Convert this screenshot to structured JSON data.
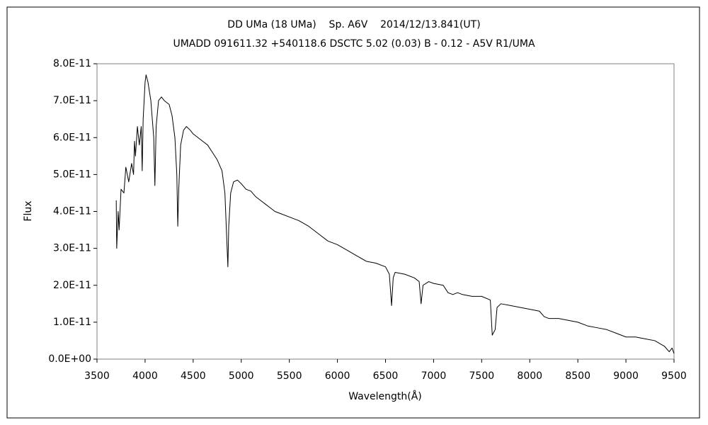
{
  "chart_data": {
    "type": "line",
    "title": "DD UMa (18 UMa)    Sp. A6V    2014/12/13.841(UT)",
    "subtitle": "UMADD 091611.32 +540118.6 DSCTC 5.02 (0.03) B - 0.12 - A5V R1/UMA",
    "x_label": "Wavelength(Å)",
    "y_label": "Flux",
    "xlim": [
      3500,
      9500
    ],
    "xticks": [
      3500,
      4000,
      4500,
      5000,
      5500,
      6000,
      6500,
      7000,
      7500,
      8000,
      8500,
      9000,
      9500
    ],
    "ylim": [
      0,
      8e-11
    ],
    "yticks": [
      {
        "value": 0,
        "label": "0.0E+00"
      },
      {
        "value": 1e-11,
        "label": "1.0E-11"
      },
      {
        "value": 2e-11,
        "label": "2.0E-11"
      },
      {
        "value": 3e-11,
        "label": "3.0E-11"
      },
      {
        "value": 4e-11,
        "label": "4.0E-11"
      },
      {
        "value": 5e-11,
        "label": "5.0E-11"
      },
      {
        "value": 6e-11,
        "label": "6.0E-11"
      },
      {
        "value": 7e-11,
        "label": "7.0E-11"
      },
      {
        "value": 8e-11,
        "label": "8.0E-11"
      }
    ],
    "grid": false,
    "color": "#000000",
    "x": [
      3700,
      3705,
      3720,
      3730,
      3750,
      3780,
      3800,
      3830,
      3860,
      3880,
      3890,
      3900,
      3920,
      3940,
      3960,
      3970,
      3980,
      4000,
      4010,
      4030,
      4060,
      4090,
      4102,
      4115,
      4140,
      4170,
      4200,
      4250,
      4280,
      4310,
      4330,
      4340,
      4350,
      4370,
      4400,
      4430,
      4470,
      4500,
      4550,
      4600,
      4650,
      4700,
      4750,
      4800,
      4830,
      4850,
      4861,
      4870,
      4890,
      4920,
      4960,
      5000,
      5050,
      5100,
      5150,
      5200,
      5250,
      5300,
      5350,
      5400,
      5500,
      5600,
      5700,
      5800,
      5900,
      6000,
      6100,
      6200,
      6300,
      6400,
      6500,
      6540,
      6563,
      6580,
      6600,
      6700,
      6800,
      6850,
      6870,
      6890,
      6950,
      7000,
      7100,
      7150,
      7200,
      7250,
      7300,
      7400,
      7500,
      7590,
      7610,
      7640,
      7660,
      7700,
      7800,
      7900,
      8000,
      8100,
      8150,
      8200,
      8300,
      8400,
      8500,
      8600,
      8700,
      8800,
      8900,
      9000,
      9100,
      9200,
      9300,
      9400,
      9450,
      9480,
      9500
    ],
    "values": [
      4.3e-11,
      3e-11,
      4e-11,
      3.5e-11,
      4.6e-11,
      4.5e-11,
      5.2e-11,
      4.8e-11,
      5.3e-11,
      5e-11,
      5.9e-11,
      5.5e-11,
      6.3e-11,
      5.8e-11,
      6.3e-11,
      5.1e-11,
      6.5e-11,
      7.5e-11,
      7.7e-11,
      7.5e-11,
      7e-11,
      6e-11,
      4.7e-11,
      6.3e-11,
      7e-11,
      7.1e-11,
      7e-11,
      6.9e-11,
      6.6e-11,
      6e-11,
      5e-11,
      3.6e-11,
      4.6e-11,
      5.8e-11,
      6.2e-11,
      6.3e-11,
      6.2e-11,
      6.1e-11,
      6e-11,
      5.9e-11,
      5.8e-11,
      5.6e-11,
      5.4e-11,
      5.1e-11,
      4.5e-11,
      3.2e-11,
      2.5e-11,
      3.6e-11,
      4.5e-11,
      4.8e-11,
      4.85e-11,
      4.75e-11,
      4.6e-11,
      4.55e-11,
      4.4e-11,
      4.3e-11,
      4.2e-11,
      4.1e-11,
      4e-11,
      3.95e-11,
      3.85e-11,
      3.75e-11,
      3.6e-11,
      3.4e-11,
      3.2e-11,
      3.1e-11,
      2.95e-11,
      2.8e-11,
      2.65e-11,
      2.6e-11,
      2.5e-11,
      2.3e-11,
      1.45e-11,
      2.2e-11,
      2.35e-11,
      2.3e-11,
      2.2e-11,
      2.1e-11,
      1.5e-11,
      2e-11,
      2.1e-11,
      2.05e-11,
      2e-11,
      1.8e-11,
      1.75e-11,
      1.8e-11,
      1.75e-11,
      1.7e-11,
      1.7e-11,
      1.6e-11,
      6.5e-12,
      8e-12,
      1.4e-11,
      1.5e-11,
      1.45e-11,
      1.4e-11,
      1.35e-11,
      1.3e-11,
      1.15e-11,
      1.1e-11,
      1.1e-11,
      1.05e-11,
      1e-11,
      9e-12,
      8.5e-12,
      8e-12,
      7e-12,
      6e-12,
      6e-12,
      5.5e-12,
      5e-12,
      3.5e-12,
      2e-12,
      3e-12,
      1.5e-12
    ]
  }
}
